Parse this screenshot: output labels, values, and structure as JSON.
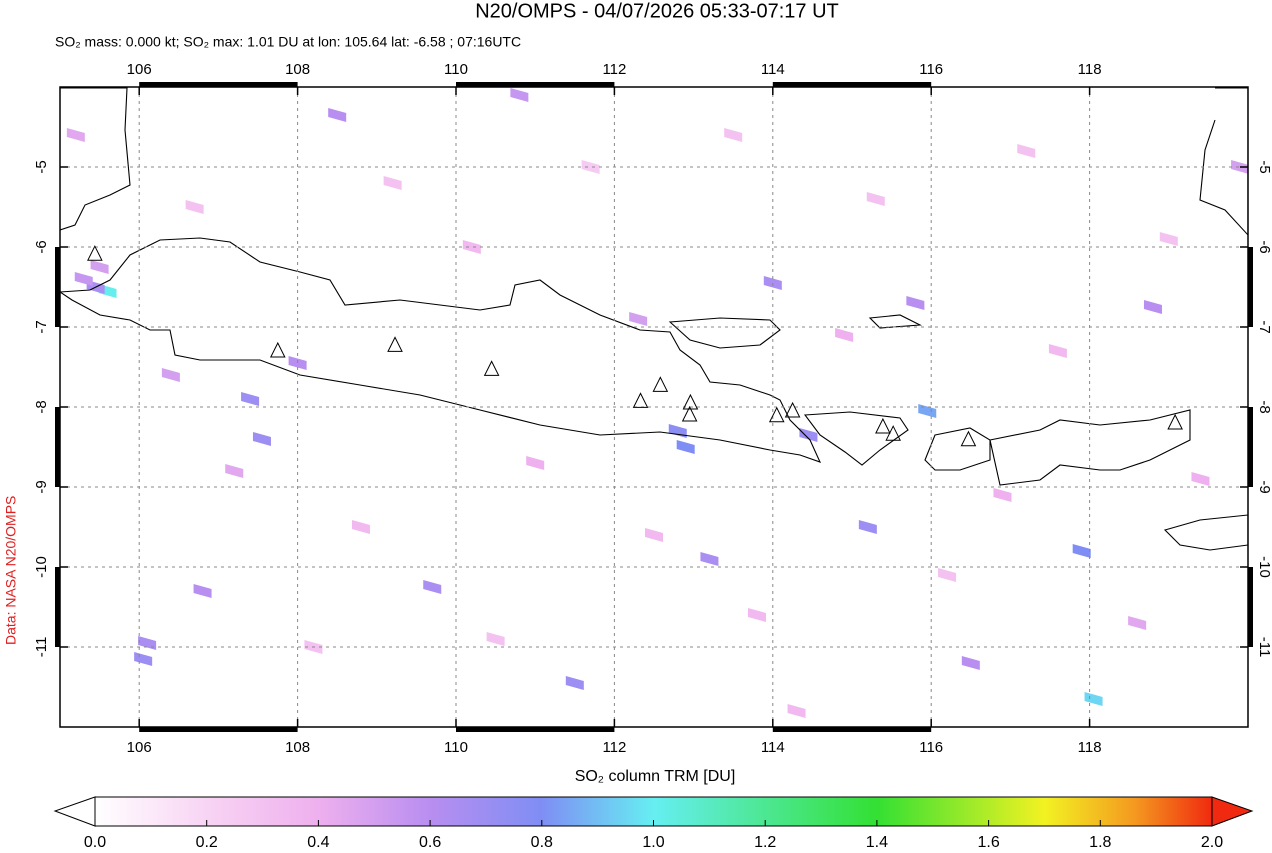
{
  "map": {
    "title": "N20/OMPS - 04/07/2026 05:33-07:17 UT",
    "subtitle": "SO₂ mass: 0.000 kt; SO₂ max: 1.01 DU at lon: 105.64 lat: -6.58 ; 07:16UTC",
    "credit": "Data: NASA N20/OMPS",
    "xlim": [
      105,
      120
    ],
    "ylim": [
      -12,
      -4
    ],
    "xticks": [
      106,
      108,
      110,
      112,
      114,
      116,
      118
    ],
    "yticks": [
      -11,
      -10,
      -9,
      -8,
      -7,
      -6,
      -5
    ],
    "cells": [
      [
        105.6,
        -6.55,
        1.01
      ],
      [
        105.45,
        -6.5,
        0.65
      ],
      [
        105.3,
        -6.4,
        0.55
      ],
      [
        105.5,
        -6.25,
        0.5
      ],
      [
        107.4,
        -7.9,
        0.7
      ],
      [
        107.55,
        -8.4,
        0.7
      ],
      [
        108.0,
        -7.45,
        0.6
      ],
      [
        106.1,
        -10.95,
        0.65
      ],
      [
        106.05,
        -11.15,
        0.7
      ],
      [
        106.8,
        -10.3,
        0.6
      ],
      [
        109.7,
        -10.25,
        0.65
      ],
      [
        112.8,
        -8.3,
        0.75
      ],
      [
        112.9,
        -8.5,
        0.8
      ],
      [
        111.5,
        -11.45,
        0.7
      ],
      [
        114.45,
        -8.35,
        0.7
      ],
      [
        115.95,
        -8.05,
        0.85
      ],
      [
        114.0,
        -6.45,
        0.65
      ],
      [
        118.05,
        -11.65,
        0.95
      ],
      [
        108.5,
        -4.35,
        0.6
      ],
      [
        110.8,
        -4.1,
        0.55
      ],
      [
        113.2,
        -9.9,
        0.65
      ],
      [
        116.5,
        -11.2,
        0.6
      ],
      [
        117.9,
        -9.8,
        0.8
      ],
      [
        115.2,
        -9.5,
        0.7
      ],
      [
        118.8,
        -6.75,
        0.6
      ],
      [
        119.9,
        -5.0,
        0.5
      ],
      [
        105.2,
        -4.6,
        0.45
      ],
      [
        106.4,
        -7.6,
        0.5
      ],
      [
        107.2,
        -8.8,
        0.45
      ],
      [
        108.8,
        -9.5,
        0.35
      ],
      [
        110.2,
        -6.0,
        0.35
      ],
      [
        111.0,
        -8.7,
        0.4
      ],
      [
        112.3,
        -6.9,
        0.5
      ],
      [
        113.8,
        -10.6,
        0.35
      ],
      [
        114.9,
        -7.1,
        0.4
      ],
      [
        115.8,
        -6.7,
        0.6
      ],
      [
        116.9,
        -9.1,
        0.4
      ],
      [
        117.6,
        -7.3,
        0.35
      ],
      [
        118.6,
        -10.7,
        0.45
      ],
      [
        119.4,
        -8.9,
        0.4
      ],
      [
        106.7,
        -5.5,
        0.3
      ],
      [
        109.2,
        -5.2,
        0.3
      ],
      [
        111.7,
        -5.0,
        0.25
      ],
      [
        113.5,
        -4.6,
        0.3
      ],
      [
        115.3,
        -5.4,
        0.3
      ],
      [
        117.2,
        -4.8,
        0.3
      ],
      [
        119.0,
        -5.9,
        0.3
      ],
      [
        108.2,
        -11.0,
        0.3
      ],
      [
        110.5,
        -10.9,
        0.3
      ],
      [
        112.5,
        -9.6,
        0.35
      ],
      [
        114.3,
        -11.8,
        0.35
      ],
      [
        116.2,
        -10.1,
        0.3
      ]
    ],
    "volcanoes": [
      [
        105.44,
        -6.09
      ],
      [
        107.75,
        -7.3
      ],
      [
        109.23,
        -7.23
      ],
      [
        110.45,
        -7.53
      ],
      [
        112.33,
        -7.93
      ],
      [
        112.58,
        -7.73
      ],
      [
        112.96,
        -7.95
      ],
      [
        112.95,
        -8.1
      ],
      [
        114.05,
        -8.11
      ],
      [
        114.25,
        -8.05
      ],
      [
        115.39,
        -8.25
      ],
      [
        115.52,
        -8.34
      ],
      [
        116.47,
        -8.41
      ],
      [
        119.08,
        -8.2
      ]
    ]
  },
  "colorbar": {
    "label": "SO₂ column TRM [DU]",
    "range": [
      0,
      2
    ],
    "ticks": [
      {
        "value": 0,
        "label": "0.0"
      },
      {
        "value": 0.2,
        "label": "0.2"
      },
      {
        "value": 0.4,
        "label": "0.4"
      },
      {
        "value": 0.6,
        "label": "0.6"
      },
      {
        "value": 0.8,
        "label": "0.8"
      },
      {
        "value": 1,
        "label": "1.0"
      },
      {
        "value": 1.2,
        "label": "1.2"
      },
      {
        "value": 1.4,
        "label": "1.4"
      },
      {
        "value": 1.6,
        "label": "1.6"
      },
      {
        "value": 1.8,
        "label": "1.8"
      },
      {
        "value": 2,
        "label": "2.0"
      }
    ]
  }
}
